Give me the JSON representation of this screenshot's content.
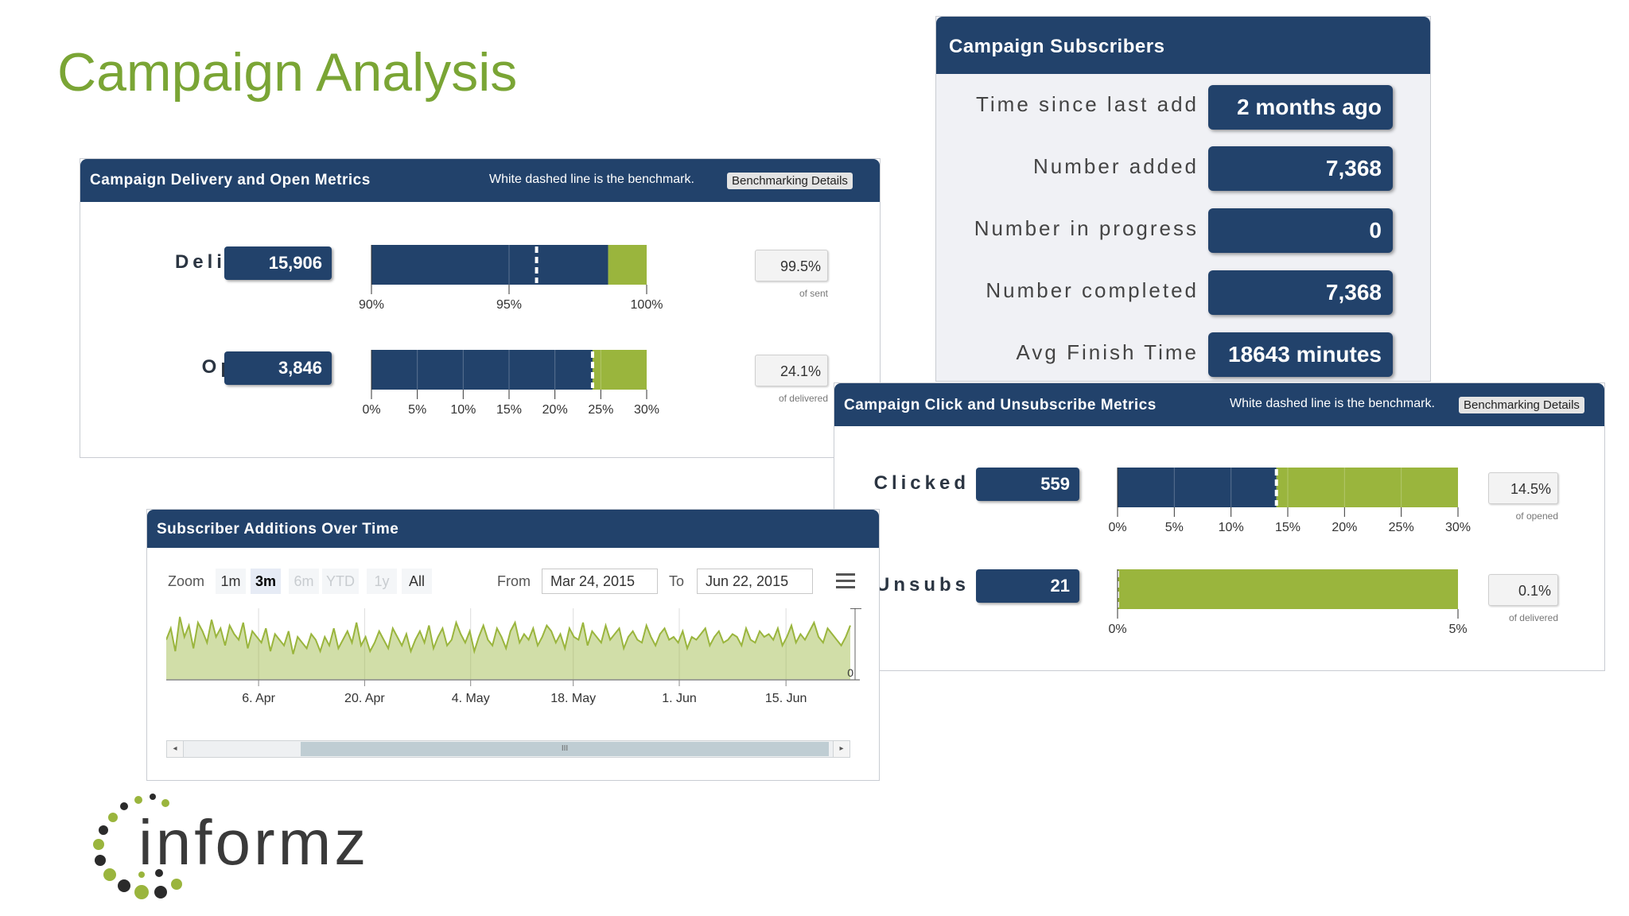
{
  "page": {
    "title": "Campaign Analysis"
  },
  "delivery_panel": {
    "title": "Campaign Delivery and Open Metrics",
    "benchmark_note": "White dashed line is the benchmark.",
    "benchmark_button": "Benchmarking Details",
    "metrics": [
      {
        "label": "Delivered",
        "value": "15,906",
        "pct": "99.5%",
        "pct_sub": "of sent",
        "axis_min": 90,
        "axis_max": 100,
        "ticks": [
          "90%",
          "95%",
          "100%"
        ],
        "tick_values": [
          90,
          95,
          100
        ],
        "benchmark": 96,
        "actual": 99.5,
        "colors": {
          "fill": "#22426b",
          "accent": "#9ab53d"
        }
      },
      {
        "label": "Opened",
        "value": "3,846",
        "pct": "24.1%",
        "pct_sub": "of delivered",
        "axis_min": 0,
        "axis_max": 30,
        "ticks": [
          "0%",
          "5%",
          "10%",
          "15%",
          "20%",
          "25%",
          "30%"
        ],
        "tick_values": [
          0,
          5,
          10,
          15,
          20,
          25,
          30
        ],
        "benchmark": 24.1,
        "actual": 24.1,
        "colors": {
          "fill": "#22426b",
          "accent": "#9ab53d"
        }
      }
    ]
  },
  "subscribers_panel": {
    "title": "Campaign Subscribers",
    "rows": [
      {
        "label": "Time since last add",
        "value": "2 months ago"
      },
      {
        "label": "Number added",
        "value": "7,368"
      },
      {
        "label": "Number in progress",
        "value": "0"
      },
      {
        "label": "Number completed",
        "value": "7,368"
      },
      {
        "label": "Avg Finish Time",
        "value": "18643 minutes"
      }
    ]
  },
  "click_panel": {
    "title": "Campaign Click and Unsubscribe Metrics",
    "benchmark_note": "White dashed line is the benchmark.",
    "benchmark_button": "Benchmarking Details",
    "metrics": [
      {
        "label": "Clicked",
        "value": "559",
        "pct": "14.5%",
        "pct_sub": "of opened",
        "axis_min": 0,
        "axis_max": 30,
        "ticks": [
          "0%",
          "5%",
          "10%",
          "15%",
          "20%",
          "25%",
          "30%"
        ],
        "tick_values": [
          0,
          5,
          10,
          15,
          20,
          25,
          30
        ],
        "benchmark": 14,
        "actual": 14.5,
        "bar_from_benchmark": true
      },
      {
        "label": "Unsubs",
        "value": "21",
        "pct": "0.1%",
        "pct_sub": "of delivered",
        "axis_min": 0,
        "axis_max": 5,
        "ticks": [
          "0%",
          "5%"
        ],
        "tick_values": [
          0,
          5
        ],
        "benchmark": 0,
        "actual": 0.1,
        "all_accent": true
      }
    ]
  },
  "additions_panel": {
    "title": "Subscriber Additions Over Time",
    "zoom_label": "Zoom",
    "zoom_options": [
      {
        "label": "1m",
        "state": "normal"
      },
      {
        "label": "3m",
        "state": "active"
      },
      {
        "label": "6m",
        "state": "disabled"
      },
      {
        "label": "YTD",
        "state": "disabled"
      },
      {
        "label": "1y",
        "state": "disabled"
      },
      {
        "label": "All",
        "state": "normal"
      }
    ],
    "from_label": "From",
    "from_value": "Mar 24, 2015",
    "to_label": "To",
    "to_value": "Jun 22, 2015",
    "menu_icon": "hamburger-icon",
    "navigator_grip": "III",
    "chart_data": {
      "type": "area",
      "x_ticks": [
        "6. Apr",
        "20. Apr",
        "4. May",
        "18. May",
        "1. Jun",
        "15. Jun"
      ],
      "y_tick_label": "0",
      "x_range": [
        "Mar 24, 2015",
        "Jun 22, 2015"
      ],
      "series": [
        {
          "color": "#9ab53d",
          "values": [
            28,
            36,
            20,
            44,
            30,
            38,
            22,
            40,
            34,
            26,
            42,
            30,
            36,
            24,
            38,
            32,
            28,
            40,
            22,
            34,
            30,
            26,
            36,
            20,
            32,
            28,
            24,
            34,
            18,
            30,
            26,
            22,
            32,
            28,
            20,
            30,
            24,
            36,
            22,
            28,
            34,
            26,
            40,
            24,
            30,
            20,
            26,
            34,
            28,
            22,
            36,
            30,
            24,
            32,
            20,
            28,
            34,
            26,
            38,
            22,
            30,
            36,
            24,
            28,
            40,
            32,
            26,
            34,
            20,
            30,
            38,
            28,
            24,
            36,
            30,
            22,
            34,
            40,
            26,
            32,
            28,
            36,
            24,
            30,
            38,
            34,
            26,
            32,
            22,
            36,
            30,
            28,
            40,
            24,
            34,
            30,
            26,
            38,
            28,
            32,
            36,
            22,
            30,
            34,
            28,
            26,
            38,
            30,
            24,
            32,
            36,
            28,
            30,
            26,
            34,
            22,
            30,
            28,
            32,
            36,
            24,
            30,
            34,
            26,
            28,
            32,
            30,
            24,
            36,
            28,
            26,
            34,
            30,
            32,
            28,
            36,
            24,
            30,
            38,
            26,
            32,
            28,
            34,
            40,
            30,
            26,
            36,
            32,
            28,
            24,
            30,
            38
          ]
        }
      ]
    }
  },
  "logo": {
    "text": "informz"
  },
  "colors": {
    "navy": "#22426b",
    "green": "#9ab53d",
    "title_green": "#7aa535"
  }
}
